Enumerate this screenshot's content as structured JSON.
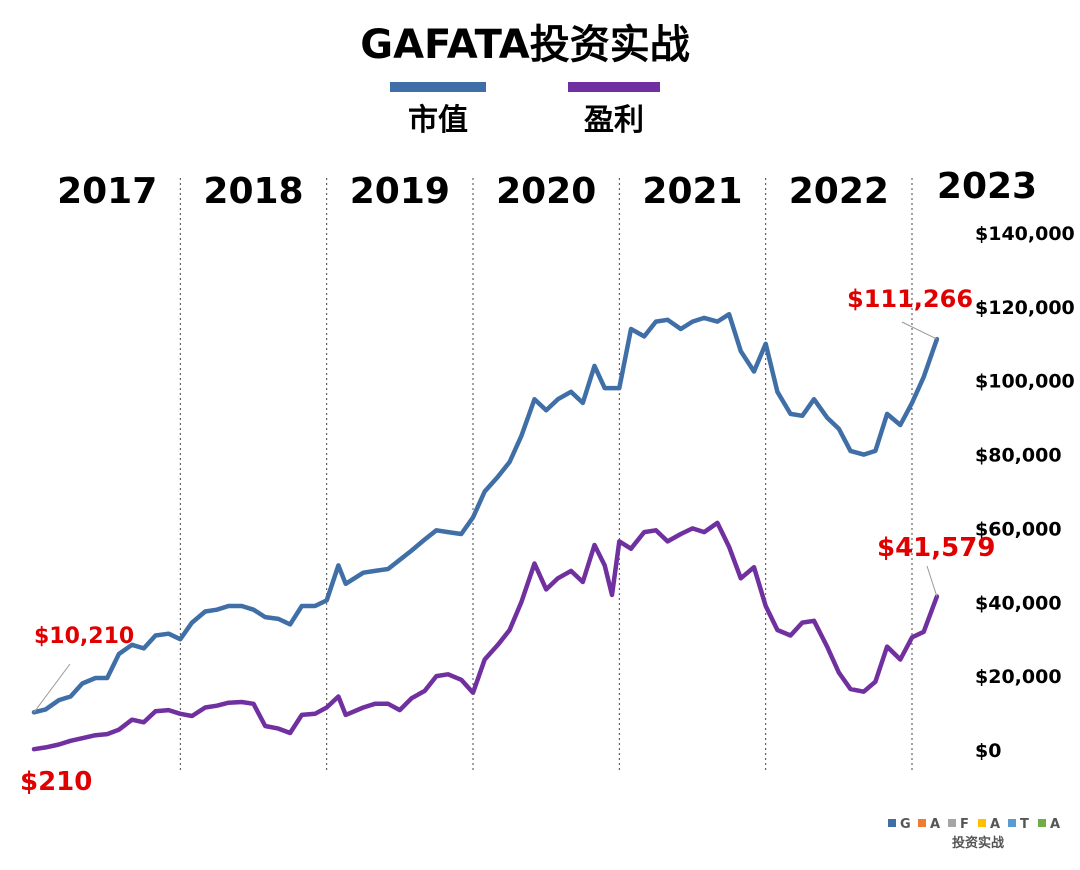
{
  "chart_data": {
    "type": "line",
    "title": "GAFATA投资实战",
    "legend": [
      {
        "name": "市值",
        "color": "#3f6fa6"
      },
      {
        "name": "盈利",
        "color": "#7030a0"
      }
    ],
    "years": [
      "2017",
      "2018",
      "2019",
      "2020",
      "2021",
      "2022",
      "2023"
    ],
    "y_axis": {
      "side": "right",
      "ylim": [
        0,
        140000
      ],
      "ticks": [
        0,
        20000,
        40000,
        60000,
        80000,
        100000,
        120000,
        140000
      ],
      "tick_labels": [
        "$0",
        "$20,000",
        "$40,000",
        "$60,000",
        "$80,000",
        "$100,000",
        "$120,000",
        "$140,000"
      ]
    },
    "x_axis": {
      "xlim": [
        2017.0,
        2023.0
      ],
      "year_dividers": [
        2018,
        2019,
        2020,
        2021,
        2022,
        2023
      ]
    },
    "grid": false,
    "series": [
      {
        "name": "市值",
        "color": "#3f6fa6",
        "points": [
          [
            2017.0,
            10210
          ],
          [
            2017.08,
            11000
          ],
          [
            2017.17,
            13500
          ],
          [
            2017.25,
            14500
          ],
          [
            2017.33,
            18000
          ],
          [
            2017.42,
            19500
          ],
          [
            2017.5,
            19500
          ],
          [
            2017.58,
            26000
          ],
          [
            2017.67,
            28500
          ],
          [
            2017.75,
            27500
          ],
          [
            2017.83,
            31000
          ],
          [
            2017.92,
            31500
          ],
          [
            2018.0,
            30000
          ],
          [
            2018.08,
            34500
          ],
          [
            2018.17,
            37500
          ],
          [
            2018.25,
            38000
          ],
          [
            2018.33,
            39000
          ],
          [
            2018.42,
            39000
          ],
          [
            2018.5,
            38000
          ],
          [
            2018.58,
            36000
          ],
          [
            2018.67,
            35500
          ],
          [
            2018.75,
            34000
          ],
          [
            2018.83,
            39000
          ],
          [
            2018.92,
            39000
          ],
          [
            2019.0,
            40500
          ],
          [
            2019.08,
            50000
          ],
          [
            2019.13,
            45000
          ],
          [
            2019.25,
            48000
          ],
          [
            2019.33,
            48500
          ],
          [
            2019.42,
            49000
          ],
          [
            2019.5,
            51500
          ],
          [
            2019.58,
            54000
          ],
          [
            2019.67,
            57000
          ],
          [
            2019.75,
            59500
          ],
          [
            2019.83,
            59000
          ],
          [
            2019.92,
            58500
          ],
          [
            2020.0,
            63000
          ],
          [
            2020.08,
            70000
          ],
          [
            2020.17,
            74000
          ],
          [
            2020.25,
            78000
          ],
          [
            2020.33,
            85000
          ],
          [
            2020.42,
            95000
          ],
          [
            2020.5,
            92000
          ],
          [
            2020.58,
            95000
          ],
          [
            2020.67,
            97000
          ],
          [
            2020.75,
            94000
          ],
          [
            2020.83,
            104000
          ],
          [
            2020.9,
            98000
          ],
          [
            2021.0,
            98000
          ],
          [
            2021.08,
            114000
          ],
          [
            2021.17,
            112000
          ],
          [
            2021.25,
            116000
          ],
          [
            2021.33,
            116500
          ],
          [
            2021.42,
            114000
          ],
          [
            2021.5,
            116000
          ],
          [
            2021.58,
            117000
          ],
          [
            2021.67,
            116000
          ],
          [
            2021.75,
            118000
          ],
          [
            2021.83,
            108000
          ],
          [
            2021.92,
            102500
          ],
          [
            2022.0,
            110000
          ],
          [
            2022.08,
            97000
          ],
          [
            2022.17,
            91000
          ],
          [
            2022.25,
            90500
          ],
          [
            2022.33,
            95000
          ],
          [
            2022.42,
            90000
          ],
          [
            2022.5,
            87000
          ],
          [
            2022.58,
            81000
          ],
          [
            2022.67,
            80000
          ],
          [
            2022.75,
            81000
          ],
          [
            2022.83,
            91000
          ],
          [
            2022.92,
            88000
          ],
          [
            2023.0,
            94000
          ],
          [
            2023.08,
            101000
          ],
          [
            2023.17,
            111266
          ]
        ]
      },
      {
        "name": "盈利",
        "color": "#7030a0",
        "points": [
          [
            2017.0,
            210
          ],
          [
            2017.08,
            700
          ],
          [
            2017.17,
            1500
          ],
          [
            2017.25,
            2500
          ],
          [
            2017.33,
            3200
          ],
          [
            2017.42,
            4000
          ],
          [
            2017.5,
            4300
          ],
          [
            2017.58,
            5500
          ],
          [
            2017.67,
            8200
          ],
          [
            2017.75,
            7500
          ],
          [
            2017.83,
            10500
          ],
          [
            2017.92,
            10800
          ],
          [
            2018.0,
            9800
          ],
          [
            2018.08,
            9200
          ],
          [
            2018.17,
            11500
          ],
          [
            2018.25,
            12000
          ],
          [
            2018.33,
            12800
          ],
          [
            2018.42,
            13000
          ],
          [
            2018.5,
            12500
          ],
          [
            2018.58,
            6500
          ],
          [
            2018.67,
            5800
          ],
          [
            2018.75,
            4600
          ],
          [
            2018.83,
            9500
          ],
          [
            2018.92,
            9800
          ],
          [
            2019.0,
            11500
          ],
          [
            2019.08,
            14500
          ],
          [
            2019.13,
            9500
          ],
          [
            2019.25,
            11500
          ],
          [
            2019.33,
            12500
          ],
          [
            2019.42,
            12500
          ],
          [
            2019.5,
            10800
          ],
          [
            2019.58,
            14000
          ],
          [
            2019.67,
            16000
          ],
          [
            2019.75,
            20000
          ],
          [
            2019.83,
            20500
          ],
          [
            2019.92,
            19000
          ],
          [
            2020.0,
            15500
          ],
          [
            2020.08,
            24500
          ],
          [
            2020.17,
            28500
          ],
          [
            2020.25,
            32500
          ],
          [
            2020.33,
            40000
          ],
          [
            2020.42,
            50500
          ],
          [
            2020.5,
            43500
          ],
          [
            2020.58,
            46500
          ],
          [
            2020.67,
            48500
          ],
          [
            2020.75,
            45500
          ],
          [
            2020.83,
            55500
          ],
          [
            2020.9,
            50000
          ],
          [
            2020.95,
            42000
          ],
          [
            2021.0,
            56500
          ],
          [
            2021.08,
            54500
          ],
          [
            2021.17,
            59000
          ],
          [
            2021.25,
            59500
          ],
          [
            2021.33,
            56500
          ],
          [
            2021.42,
            58500
          ],
          [
            2021.5,
            60000
          ],
          [
            2021.58,
            59000
          ],
          [
            2021.67,
            61500
          ],
          [
            2021.75,
            55000
          ],
          [
            2021.83,
            46500
          ],
          [
            2021.92,
            49500
          ],
          [
            2022.0,
            39000
          ],
          [
            2022.08,
            32500
          ],
          [
            2022.17,
            31000
          ],
          [
            2022.25,
            34500
          ],
          [
            2022.33,
            35000
          ],
          [
            2022.42,
            28000
          ],
          [
            2022.5,
            21000
          ],
          [
            2022.58,
            16500
          ],
          [
            2022.67,
            15800
          ],
          [
            2022.75,
            18500
          ],
          [
            2022.83,
            28000
          ],
          [
            2022.92,
            24500
          ],
          [
            2023.0,
            30500
          ],
          [
            2023.08,
            32000
          ],
          [
            2023.17,
            41579
          ]
        ]
      }
    ],
    "annotations": [
      {
        "text": "$10,210",
        "series": "市值",
        "x": 2017.0,
        "y": 10210
      },
      {
        "text": "$210",
        "series": "盈利",
        "x": 2017.0,
        "y": 210
      },
      {
        "text": "$111,266",
        "series": "市值",
        "x": 2023.17,
        "y": 111266
      },
      {
        "text": "$41,579",
        "series": "盈利",
        "x": 2023.17,
        "y": 41579
      }
    ],
    "watermark": {
      "letters": [
        {
          "char": "G",
          "color": "#3f6fa6"
        },
        {
          "char": "A",
          "color": "#ed7d31"
        },
        {
          "char": "F",
          "color": "#a5a5a5"
        },
        {
          "char": "A",
          "color": "#ffc000"
        },
        {
          "char": "T",
          "color": "#5b9bd5"
        },
        {
          "char": "A",
          "color": "#70ad47"
        }
      ],
      "subtitle": "投资实战"
    }
  }
}
